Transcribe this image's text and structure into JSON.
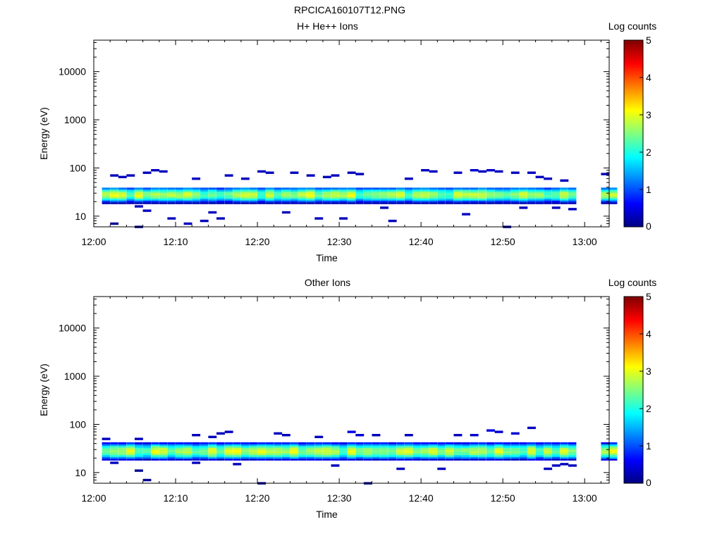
{
  "title": "RPCICA160107T12.PNG",
  "colors": {
    "colormap": [
      "#000080",
      "#0000ff",
      "#0080ff",
      "#00ffff",
      "#80ff80",
      "#ffff00",
      "#ff8000",
      "#ff0000",
      "#800000"
    ]
  },
  "chart_data": [
    {
      "type": "heatmap",
      "title": "H+ He++ Ions",
      "xlabel": "Time",
      "ylabel": "Energy (eV)",
      "yscale": "log",
      "xlim": [
        "12:00",
        "13:03"
      ],
      "ylim": [
        6,
        45000
      ],
      "x_ticks": [
        "12:00",
        "12:10",
        "12:20",
        "12:30",
        "12:40",
        "12:50",
        "13:00"
      ],
      "y_ticks": [
        "10",
        "100",
        "1000",
        "10000"
      ],
      "colorbar": {
        "label": "Log counts",
        "range": [
          0,
          5
        ],
        "ticks": [
          "0",
          "1",
          "2",
          "3",
          "4",
          "5"
        ]
      },
      "time_coverage": [
        [
          "12:01",
          "12:58"
        ],
        [
          "13:02",
          "13:03"
        ]
      ],
      "energy_band": [
        18,
        40
      ],
      "peak_energy": 28,
      "peak_log_counts_range": [
        2.2,
        3.1
      ],
      "sporadic_counts": [
        {
          "t": "12:02",
          "e": 70,
          "v": 0.3
        },
        {
          "t": "12:03",
          "e": 65,
          "v": 0.3
        },
        {
          "t": "12:04",
          "e": 70,
          "v": 0.3
        },
        {
          "t": "12:06",
          "e": 80,
          "v": 0.3
        },
        {
          "t": "12:07",
          "e": 90,
          "v": 0.3
        },
        {
          "t": "12:08",
          "e": 85,
          "v": 0.3
        },
        {
          "t": "12:02",
          "e": 7,
          "v": 0.1
        },
        {
          "t": "12:05",
          "e": 6,
          "v": 0.1
        },
        {
          "t": "12:05",
          "e": 16,
          "v": 0.3
        },
        {
          "t": "12:06",
          "e": 13,
          "v": 0.3
        },
        {
          "t": "12:09",
          "e": 9,
          "v": 0.3
        },
        {
          "t": "12:11",
          "e": 7,
          "v": 0.3
        },
        {
          "t": "12:12",
          "e": 60,
          "v": 0.3
        },
        {
          "t": "12:13",
          "e": 8,
          "v": 0.3
        },
        {
          "t": "12:14",
          "e": 12,
          "v": 0.3
        },
        {
          "t": "12:15",
          "e": 9,
          "v": 0.3
        },
        {
          "t": "12:16",
          "e": 70,
          "v": 0.3
        },
        {
          "t": "12:18",
          "e": 60,
          "v": 0.3
        },
        {
          "t": "12:20",
          "e": 85,
          "v": 0.3
        },
        {
          "t": "12:21",
          "e": 80,
          "v": 0.3
        },
        {
          "t": "12:23",
          "e": 12,
          "v": 0.3
        },
        {
          "t": "12:24",
          "e": 80,
          "v": 0.3
        },
        {
          "t": "12:26",
          "e": 70,
          "v": 0.3
        },
        {
          "t": "12:27",
          "e": 9,
          "v": 0.3
        },
        {
          "t": "12:28",
          "e": 65,
          "v": 0.3
        },
        {
          "t": "12:29",
          "e": 70,
          "v": 0.3
        },
        {
          "t": "12:30",
          "e": 9,
          "v": 0.3
        },
        {
          "t": "12:31",
          "e": 80,
          "v": 0.3
        },
        {
          "t": "12:32",
          "e": 75,
          "v": 0.3
        },
        {
          "t": "12:35",
          "e": 15,
          "v": 0.3
        },
        {
          "t": "12:36",
          "e": 8,
          "v": 0.3
        },
        {
          "t": "12:38",
          "e": 60,
          "v": 0.3
        },
        {
          "t": "12:40",
          "e": 90,
          "v": 0.3
        },
        {
          "t": "12:41",
          "e": 85,
          "v": 0.3
        },
        {
          "t": "12:44",
          "e": 80,
          "v": 0.3
        },
        {
          "t": "12:45",
          "e": 11,
          "v": 0.3
        },
        {
          "t": "12:46",
          "e": 90,
          "v": 0.4
        },
        {
          "t": "12:47",
          "e": 85,
          "v": 0.3
        },
        {
          "t": "12:48",
          "e": 90,
          "v": 0.4
        },
        {
          "t": "12:49",
          "e": 85,
          "v": 0.3
        },
        {
          "t": "12:51",
          "e": 80,
          "v": 0.3
        },
        {
          "t": "12:52",
          "e": 15,
          "v": 0.3
        },
        {
          "t": "12:53",
          "e": 80,
          "v": 0.3
        },
        {
          "t": "12:54",
          "e": 65,
          "v": 0.3
        },
        {
          "t": "12:55",
          "e": 60,
          "v": 0.3
        },
        {
          "t": "12:56",
          "e": 15,
          "v": 0.3
        },
        {
          "t": "12:57",
          "e": 55,
          "v": 0.3
        },
        {
          "t": "12:58",
          "e": 14,
          "v": 0.3
        },
        {
          "t": "12:50",
          "e": 6,
          "v": 0.1
        },
        {
          "t": "13:02",
          "e": 75,
          "v": 0.3
        }
      ]
    },
    {
      "type": "heatmap",
      "title": "Other Ions",
      "xlabel": "Time",
      "ylabel": "Energy (eV)",
      "yscale": "log",
      "xlim": [
        "12:00",
        "13:03"
      ],
      "ylim": [
        6,
        45000
      ],
      "x_ticks": [
        "12:00",
        "12:10",
        "12:20",
        "12:30",
        "12:40",
        "12:50",
        "13:00"
      ],
      "y_ticks": [
        "10",
        "100",
        "1000",
        "10000"
      ],
      "colorbar": {
        "label": "Log counts",
        "range": [
          0,
          5
        ],
        "ticks": [
          "0",
          "1",
          "2",
          "3",
          "4",
          "5"
        ]
      },
      "time_coverage": [
        [
          "12:01",
          "12:58"
        ],
        [
          "13:02",
          "13:03"
        ]
      ],
      "energy_band": [
        18,
        42
      ],
      "peak_energy": 28,
      "peak_log_counts_range": [
        2.2,
        3.1
      ],
      "sporadic_counts": [
        {
          "t": "12:01",
          "e": 50,
          "v": 0.3
        },
        {
          "t": "12:02",
          "e": 16,
          "v": 0.3
        },
        {
          "t": "12:05",
          "e": 11,
          "v": 0.1
        },
        {
          "t": "12:06",
          "e": 7,
          "v": 0.1
        },
        {
          "t": "12:05",
          "e": 50,
          "v": 0.3
        },
        {
          "t": "12:12",
          "e": 16,
          "v": 0.3
        },
        {
          "t": "12:12",
          "e": 60,
          "v": 0.3
        },
        {
          "t": "12:14",
          "e": 55,
          "v": 0.3
        },
        {
          "t": "12:15",
          "e": 65,
          "v": 0.3
        },
        {
          "t": "12:16",
          "e": 70,
          "v": 0.3
        },
        {
          "t": "12:17",
          "e": 15,
          "v": 0.3
        },
        {
          "t": "12:20",
          "e": 6,
          "v": 0.1
        },
        {
          "t": "12:22",
          "e": 65,
          "v": 0.3
        },
        {
          "t": "12:23",
          "e": 60,
          "v": 0.3
        },
        {
          "t": "12:27",
          "e": 55,
          "v": 0.3
        },
        {
          "t": "12:29",
          "e": 14,
          "v": 0.3
        },
        {
          "t": "12:31",
          "e": 70,
          "v": 0.5
        },
        {
          "t": "12:32",
          "e": 60,
          "v": 0.4
        },
        {
          "t": "12:33",
          "e": 6,
          "v": 0.1
        },
        {
          "t": "12:34",
          "e": 60,
          "v": 0.3
        },
        {
          "t": "12:37",
          "e": 12,
          "v": 0.3
        },
        {
          "t": "12:38",
          "e": 60,
          "v": 0.3
        },
        {
          "t": "12:42",
          "e": 12,
          "v": 0.3
        },
        {
          "t": "12:44",
          "e": 60,
          "v": 0.3
        },
        {
          "t": "12:46",
          "e": 60,
          "v": 0.4
        },
        {
          "t": "12:48",
          "e": 75,
          "v": 0.5
        },
        {
          "t": "12:49",
          "e": 70,
          "v": 0.4
        },
        {
          "t": "12:51",
          "e": 65,
          "v": 0.4
        },
        {
          "t": "12:53",
          "e": 85,
          "v": 0.3
        },
        {
          "t": "12:55",
          "e": 12,
          "v": 0.3
        },
        {
          "t": "12:56",
          "e": 14,
          "v": 0.3
        },
        {
          "t": "12:57",
          "e": 15,
          "v": 0.3
        },
        {
          "t": "12:58",
          "e": 14,
          "v": 0.3
        }
      ]
    }
  ]
}
